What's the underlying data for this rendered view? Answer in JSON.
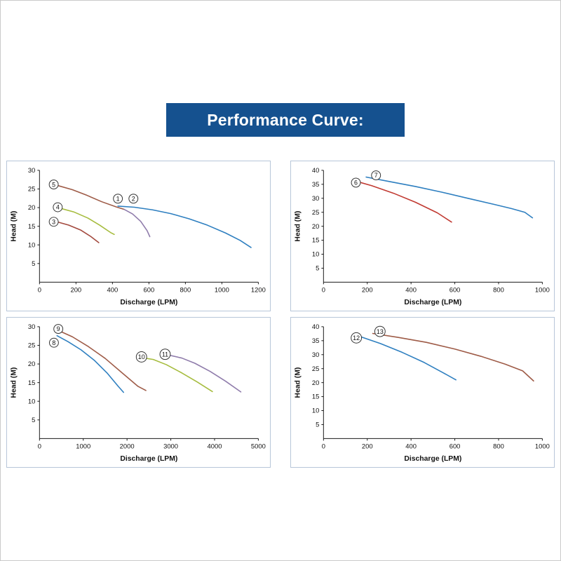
{
  "banner": {
    "title": "Performance Curve:",
    "bg_color": "#15518f",
    "text_color": "#ffffff"
  },
  "chart_data": [
    {
      "type": "line",
      "title": "",
      "xlabel": "Discharge (LPM)",
      "ylabel": "Head (M)",
      "xlim": [
        0,
        1200
      ],
      "ylim": [
        0,
        30
      ],
      "xticks": [
        0,
        200,
        400,
        600,
        800,
        1000,
        1200
      ],
      "yticks": [
        5,
        10,
        15,
        20,
        25,
        30
      ],
      "grid": false,
      "series": [
        {
          "name": "5",
          "color": "#9e5b47",
          "label_at": [
            78,
            26.2
          ],
          "points": [
            [
              95,
              26
            ],
            [
              180,
              24.8
            ],
            [
              260,
              23.3
            ],
            [
              340,
              21.6
            ],
            [
              420,
              20.2
            ],
            [
              465,
              19.5
            ]
          ]
        },
        {
          "name": "1",
          "color": "#8f7cab",
          "label_at": [
            430,
            22.4
          ],
          "points": [
            [
              465,
              19.5
            ],
            [
              510,
              18.3
            ],
            [
              555,
              16.3
            ],
            [
              590,
              13.8
            ],
            [
              605,
              12.2
            ]
          ]
        },
        {
          "name": "2",
          "color": "#2e7fc0",
          "label_at": [
            515,
            22.4
          ],
          "points": [
            [
              430,
              20.4
            ],
            [
              520,
              20.1
            ],
            [
              620,
              19.4
            ],
            [
              720,
              18.4
            ],
            [
              820,
              17.0
            ],
            [
              920,
              15.3
            ],
            [
              1020,
              13.2
            ],
            [
              1100,
              11.2
            ],
            [
              1160,
              9.3
            ]
          ]
        },
        {
          "name": "4",
          "color": "#a6bc3e",
          "label_at": [
            100,
            20.1
          ],
          "points": [
            [
              115,
              19.8
            ],
            [
              190,
              18.8
            ],
            [
              265,
              17.2
            ],
            [
              330,
              15.3
            ],
            [
              390,
              13.3
            ],
            [
              410,
              12.8
            ]
          ]
        },
        {
          "name": "3",
          "color": "#a3493e",
          "label_at": [
            78,
            16.2
          ],
          "points": [
            [
              95,
              16.2
            ],
            [
              160,
              15.3
            ],
            [
              225,
              14.0
            ],
            [
              280,
              12.3
            ],
            [
              325,
              10.6
            ]
          ]
        }
      ]
    },
    {
      "type": "line",
      "title": "",
      "xlabel": "Discharge (LPM)",
      "ylabel": "Head (M)",
      "xlim": [
        0,
        1000
      ],
      "ylim": [
        0,
        40
      ],
      "xticks": [
        0,
        200,
        400,
        600,
        800,
        1000
      ],
      "yticks": [
        5,
        10,
        15,
        20,
        25,
        30,
        35,
        40
      ],
      "grid": false,
      "series": [
        {
          "name": "6",
          "color": "#c13a32",
          "label_at": [
            148,
            35.6
          ],
          "points": [
            [
              140,
              36.3
            ],
            [
              220,
              34.5
            ],
            [
              320,
              31.8
            ],
            [
              420,
              28.6
            ],
            [
              520,
              24.8
            ],
            [
              585,
              21.5
            ]
          ]
        },
        {
          "name": "7",
          "color": "#2e7fc0",
          "label_at": [
            240,
            38.2
          ],
          "points": [
            [
              195,
              37.6
            ],
            [
              300,
              36.0
            ],
            [
              420,
              34.2
            ],
            [
              540,
              32.2
            ],
            [
              660,
              30.0
            ],
            [
              780,
              27.8
            ],
            [
              860,
              26.3
            ],
            [
              920,
              25.0
            ],
            [
              955,
              23.0
            ]
          ]
        }
      ]
    },
    {
      "type": "line",
      "title": "",
      "xlabel": "Discharge (LPM)",
      "ylabel": "Head (M)",
      "xlim": [
        0,
        5000
      ],
      "ylim": [
        0,
        30
      ],
      "xticks": [
        0,
        1000,
        2000,
        3000,
        4000,
        5000
      ],
      "yticks": [
        5,
        10,
        15,
        20,
        25,
        30
      ],
      "grid": false,
      "series": [
        {
          "name": "9",
          "color": "#9e5b47",
          "label_at": [
            430,
            29.4
          ],
          "points": [
            [
              430,
              29.0
            ],
            [
              750,
              27.3
            ],
            [
              1100,
              24.8
            ],
            [
              1500,
              21.5
            ],
            [
              1900,
              17.5
            ],
            [
              2250,
              14.0
            ],
            [
              2430,
              12.9
            ]
          ]
        },
        {
          "name": "8",
          "color": "#2e7fc0",
          "label_at": [
            330,
            25.7
          ],
          "points": [
            [
              400,
              27.6
            ],
            [
              650,
              26.0
            ],
            [
              950,
              23.8
            ],
            [
              1250,
              21.0
            ],
            [
              1550,
              17.5
            ],
            [
              1800,
              14.0
            ],
            [
              1920,
              12.4
            ]
          ]
        },
        {
          "name": "10",
          "color": "#a6bc3e",
          "label_at": [
            2330,
            21.9
          ],
          "points": [
            [
              2330,
              21.7
            ],
            [
              2600,
              21.2
            ],
            [
              2900,
              19.8
            ],
            [
              3250,
              17.6
            ],
            [
              3600,
              15.2
            ],
            [
              3950,
              12.6
            ]
          ]
        },
        {
          "name": "11",
          "color": "#8f7cab",
          "label_at": [
            2870,
            22.6
          ],
          "points": [
            [
              2950,
              22.4
            ],
            [
              3250,
              21.6
            ],
            [
              3550,
              20.2
            ],
            [
              3900,
              18.0
            ],
            [
              4250,
              15.4
            ],
            [
              4600,
              12.5
            ]
          ]
        }
      ]
    },
    {
      "type": "line",
      "title": "",
      "xlabel": "Discharge (LPM)",
      "ylabel": "Head (M)",
      "xlim": [
        0,
        1000
      ],
      "ylim": [
        0,
        40
      ],
      "xticks": [
        0,
        200,
        400,
        600,
        800,
        1000
      ],
      "yticks": [
        5,
        10,
        15,
        20,
        25,
        30,
        35,
        40
      ],
      "grid": false,
      "series": [
        {
          "name": "12",
          "color": "#2e7fc0",
          "label_at": [
            150,
            36.0
          ],
          "points": [
            [
              170,
              36.4
            ],
            [
              260,
              34.0
            ],
            [
              360,
              30.8
            ],
            [
              460,
              27.2
            ],
            [
              545,
              23.6
            ],
            [
              605,
              21.0
            ]
          ]
        },
        {
          "name": "13",
          "color": "#9e5b47",
          "label_at": [
            258,
            38.3
          ],
          "points": [
            [
              225,
              37.6
            ],
            [
              340,
              36.2
            ],
            [
              470,
              34.4
            ],
            [
              600,
              32.0
            ],
            [
              720,
              29.4
            ],
            [
              830,
              26.6
            ],
            [
              910,
              24.2
            ],
            [
              960,
              20.6
            ]
          ]
        }
      ]
    }
  ]
}
